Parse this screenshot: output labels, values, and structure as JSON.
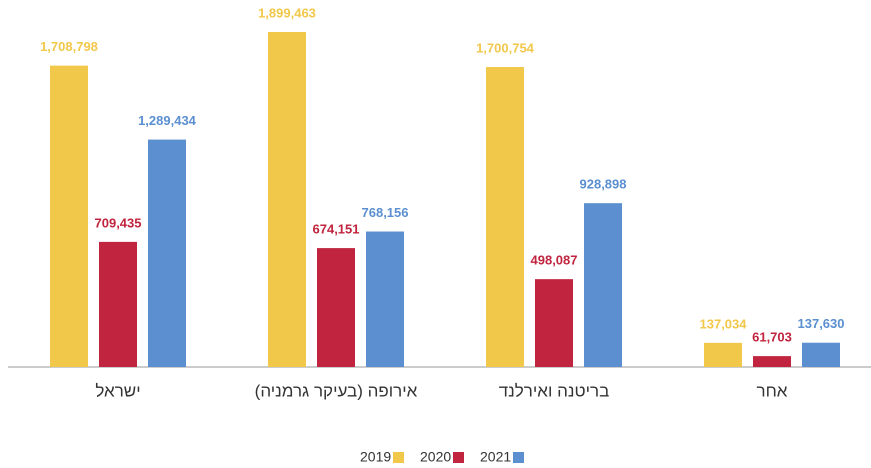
{
  "chart_data": {
    "type": "bar",
    "categories": [
      "ישראל",
      "אירופה (בעיקר גרמניה)",
      "בריטנה ואירלנד",
      "אחר"
    ],
    "series": [
      {
        "name": "2019",
        "color": "#f2c84b",
        "values": [
          1708798,
          1899463,
          1700754,
          137034
        ],
        "value_labels": [
          "1,708,798",
          "1,899,463",
          "1,700,754",
          "137,034"
        ]
      },
      {
        "name": "2020",
        "color": "#c0243e",
        "values": [
          709435,
          674151,
          498087,
          61703
        ],
        "value_labels": [
          "709,435",
          "674,151",
          "498,087",
          "61,703"
        ]
      },
      {
        "name": "2021",
        "color": "#5b8fcf",
        "values": [
          1289434,
          768156,
          928898,
          137630
        ],
        "value_labels": [
          "1,289,434",
          "768,156",
          "928,898",
          "137,630"
        ]
      }
    ]
  }
}
